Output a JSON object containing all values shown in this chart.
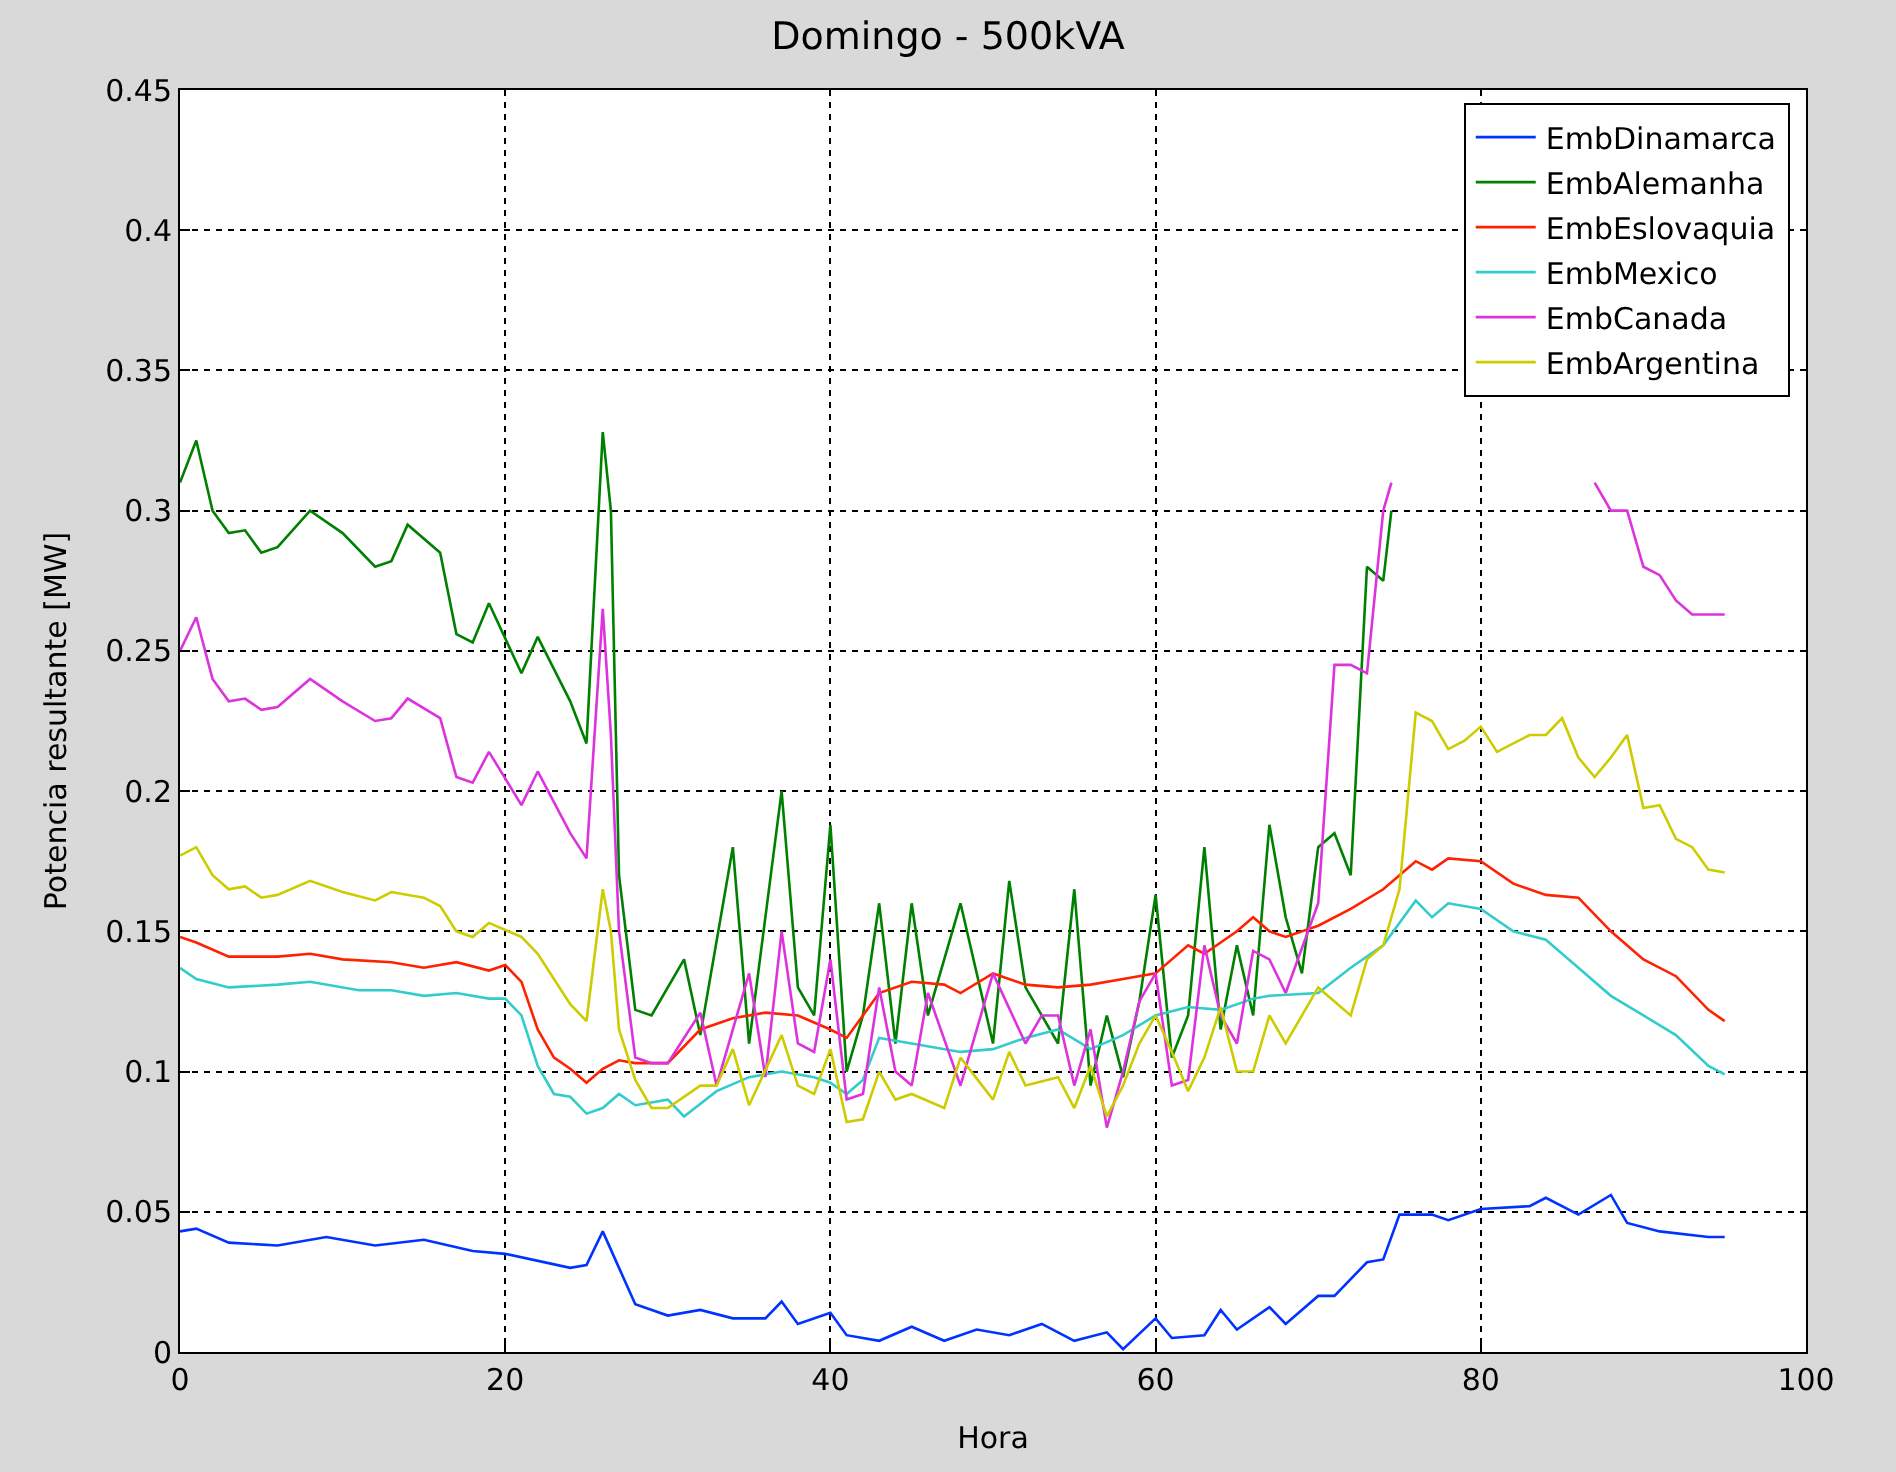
{
  "chart_data": {
    "type": "line",
    "title": "Domingo - 500kVA",
    "xlabel": "Hora",
    "ylabel": "Potencia resultante [MW]",
    "xlim": [
      0,
      100
    ],
    "xticks": [
      0,
      20,
      40,
      60,
      80,
      100
    ],
    "ylim": [
      0,
      0.45
    ],
    "yticks": [
      0,
      0.05,
      0.1,
      0.15,
      0.2,
      0.25,
      0.3,
      0.35,
      0.4,
      0.45
    ],
    "grid": true,
    "legend": "top right",
    "marker": "none",
    "line_style": "solid",
    "series": [
      {
        "name": "EmbDinamarca",
        "color": "#0033ff",
        "x": [
          0,
          1,
          3,
          6,
          9,
          12,
          15,
          18,
          20,
          24,
          25,
          26,
          27,
          28,
          30,
          32,
          34,
          36,
          37,
          38,
          40,
          41,
          43,
          45,
          47,
          49,
          51,
          53,
          55,
          57,
          58,
          60,
          61,
          63,
          64,
          65,
          67,
          68,
          70,
          71,
          73,
          74,
          75,
          77,
          78,
          80,
          83,
          84,
          86,
          88,
          89,
          91,
          94,
          95
        ],
        "values": [
          0.043,
          0.044,
          0.039,
          0.038,
          0.041,
          0.038,
          0.04,
          0.036,
          0.035,
          0.03,
          0.031,
          0.043,
          0.03,
          0.017,
          0.013,
          0.015,
          0.012,
          0.012,
          0.018,
          0.01,
          0.014,
          0.006,
          0.004,
          0.009,
          0.004,
          0.008,
          0.006,
          0.01,
          0.004,
          0.007,
          0.001,
          0.012,
          0.005,
          0.006,
          0.015,
          0.008,
          0.016,
          0.01,
          0.02,
          0.02,
          0.032,
          0.033,
          0.049,
          0.049,
          0.047,
          0.051,
          0.052,
          0.055,
          0.049,
          0.056,
          0.046,
          0.043,
          0.041,
          0.041
        ]
      },
      {
        "name": "EmbAlemanha",
        "color": "#008000",
        "x": [
          0,
          1,
          2,
          3,
          4,
          5,
          6,
          8,
          10,
          12,
          13,
          14,
          16,
          17,
          18,
          19,
          21,
          22,
          24,
          25,
          26,
          26.5,
          27,
          28,
          29,
          31,
          32,
          34,
          35,
          37,
          38,
          39,
          40,
          41,
          42,
          43,
          44,
          45,
          46,
          48,
          50,
          51,
          52,
          54,
          55,
          56,
          57,
          58,
          59,
          60,
          61,
          62,
          63,
          64,
          65,
          66,
          67,
          68,
          69,
          70,
          71,
          72,
          73,
          74,
          74.5
        ],
        "values": [
          0.31,
          0.325,
          0.3,
          0.292,
          0.293,
          0.285,
          0.287,
          0.3,
          0.292,
          0.28,
          0.282,
          0.295,
          0.285,
          0.256,
          0.253,
          0.267,
          0.242,
          0.255,
          0.232,
          0.217,
          0.328,
          0.3,
          0.17,
          0.122,
          0.12,
          0.14,
          0.113,
          0.18,
          0.11,
          0.2,
          0.13,
          0.12,
          0.188,
          0.1,
          0.12,
          0.16,
          0.11,
          0.16,
          0.12,
          0.16,
          0.11,
          0.168,
          0.13,
          0.11,
          0.165,
          0.095,
          0.12,
          0.098,
          0.125,
          0.163,
          0.105,
          0.12,
          0.18,
          0.115,
          0.145,
          0.12,
          0.188,
          0.155,
          0.135,
          0.18,
          0.185,
          0.17,
          0.28,
          0.275,
          0.3
        ]
      },
      {
        "name": "EmbEslovaquia",
        "color": "#ff2200",
        "x": [
          0,
          1,
          3,
          6,
          8,
          10,
          13,
          15,
          17,
          19,
          20,
          21,
          22,
          23,
          24,
          25,
          26,
          27,
          28,
          30,
          32,
          34,
          36,
          38,
          40,
          41,
          43,
          45,
          47,
          48,
          50,
          52,
          54,
          56,
          58,
          60,
          62,
          63,
          65,
          66,
          67,
          68,
          70,
          72,
          74,
          76,
          77,
          78,
          80,
          82,
          84,
          86,
          88,
          90,
          92,
          94,
          95
        ],
        "values": [
          0.148,
          0.146,
          0.141,
          0.141,
          0.142,
          0.14,
          0.139,
          0.137,
          0.139,
          0.136,
          0.138,
          0.132,
          0.115,
          0.105,
          0.101,
          0.096,
          0.101,
          0.104,
          0.103,
          0.103,
          0.115,
          0.119,
          0.121,
          0.12,
          0.115,
          0.112,
          0.128,
          0.132,
          0.131,
          0.128,
          0.135,
          0.131,
          0.13,
          0.131,
          0.133,
          0.135,
          0.145,
          0.142,
          0.15,
          0.155,
          0.15,
          0.148,
          0.152,
          0.158,
          0.165,
          0.175,
          0.172,
          0.176,
          0.175,
          0.167,
          0.163,
          0.162,
          0.15,
          0.14,
          0.134,
          0.122,
          0.118
        ]
      },
      {
        "name": "EmbMexico",
        "color": "#33cccc",
        "x": [
          0,
          1,
          3,
          6,
          8,
          11,
          13,
          15,
          17,
          19,
          20,
          21,
          22,
          23,
          24,
          25,
          26,
          27,
          28,
          30,
          31,
          33,
          35,
          37,
          39,
          40,
          41,
          42,
          43,
          45,
          48,
          50,
          52,
          54,
          56,
          58,
          60,
          62,
          64,
          66,
          67,
          70,
          72,
          74,
          76,
          77,
          78,
          80,
          82,
          84,
          86,
          88,
          90,
          92,
          94,
          95
        ],
        "values": [
          0.137,
          0.133,
          0.13,
          0.131,
          0.132,
          0.129,
          0.129,
          0.127,
          0.128,
          0.126,
          0.126,
          0.12,
          0.102,
          0.092,
          0.091,
          0.085,
          0.087,
          0.092,
          0.088,
          0.09,
          0.084,
          0.093,
          0.098,
          0.1,
          0.098,
          0.096,
          0.092,
          0.097,
          0.112,
          0.11,
          0.107,
          0.108,
          0.112,
          0.115,
          0.108,
          0.113,
          0.12,
          0.123,
          0.122,
          0.126,
          0.127,
          0.128,
          0.137,
          0.145,
          0.161,
          0.155,
          0.16,
          0.158,
          0.15,
          0.147,
          0.137,
          0.127,
          0.12,
          0.113,
          0.102,
          0.099
        ]
      },
      {
        "name": "EmbCanada",
        "color": "#dd33dd",
        "x": [
          0,
          1,
          2,
          3,
          4,
          5,
          6,
          8,
          10,
          12,
          13,
          14,
          16,
          17,
          18,
          19,
          21,
          22,
          24,
          25,
          26,
          26.5,
          27,
          28,
          29,
          30,
          32,
          33,
          35,
          36,
          37,
          38,
          39,
          40,
          41,
          42,
          43,
          44,
          45,
          46,
          48,
          50,
          52,
          53,
          54,
          55,
          56,
          57,
          58,
          59,
          60,
          61,
          62,
          63,
          64,
          65,
          66,
          67,
          68,
          70,
          71,
          72,
          73,
          74,
          74.5,
          80,
          87,
          88,
          89,
          90,
          91,
          92,
          93,
          95
        ],
        "values": [
          0.25,
          0.262,
          0.24,
          0.232,
          0.233,
          0.229,
          0.23,
          0.24,
          0.232,
          0.225,
          0.226,
          0.233,
          0.226,
          0.205,
          0.203,
          0.214,
          0.195,
          0.207,
          0.185,
          0.176,
          0.265,
          0.22,
          0.15,
          0.105,
          0.103,
          0.103,
          0.121,
          0.095,
          0.135,
          0.098,
          0.15,
          0.11,
          0.107,
          0.14,
          0.09,
          0.092,
          0.13,
          0.1,
          0.095,
          0.128,
          0.095,
          0.135,
          0.11,
          0.12,
          0.12,
          0.095,
          0.115,
          0.08,
          0.1,
          0.125,
          0.135,
          0.095,
          0.097,
          0.145,
          0.12,
          0.11,
          0.143,
          0.14,
          0.128,
          0.16,
          0.245,
          0.245,
          0.242,
          0.3,
          0.31,
          null,
          0.31,
          0.3,
          0.3,
          0.28,
          0.277,
          0.268,
          0.263,
          0.263
        ]
      },
      {
        "name": "EmbArgentina",
        "color": "#cccc00",
        "x": [
          0,
          1,
          2,
          3,
          4,
          5,
          6,
          8,
          10,
          12,
          13,
          15,
          16,
          17,
          18,
          19,
          21,
          22,
          24,
          25,
          26,
          26.5,
          27,
          28,
          29,
          30,
          32,
          33,
          34,
          35,
          37,
          38,
          39,
          40,
          41,
          42,
          43,
          44,
          45,
          47,
          48,
          50,
          51,
          52,
          54,
          55,
          56,
          57,
          58,
          59,
          60,
          61,
          62,
          63,
          64,
          65,
          66,
          67,
          68,
          70,
          72,
          73,
          74,
          75,
          76,
          77,
          78,
          79,
          80,
          81,
          83,
          84,
          85,
          86,
          87,
          88,
          89,
          90,
          91,
          92,
          93,
          94,
          95
        ],
        "values": [
          0.177,
          0.18,
          0.17,
          0.165,
          0.166,
          0.162,
          0.163,
          0.168,
          0.164,
          0.161,
          0.164,
          0.162,
          0.159,
          0.15,
          0.148,
          0.153,
          0.148,
          0.142,
          0.124,
          0.118,
          0.165,
          0.15,
          0.115,
          0.097,
          0.087,
          0.087,
          0.095,
          0.095,
          0.108,
          0.088,
          0.113,
          0.095,
          0.092,
          0.108,
          0.082,
          0.083,
          0.1,
          0.09,
          0.092,
          0.087,
          0.105,
          0.09,
          0.107,
          0.095,
          0.098,
          0.087,
          0.102,
          0.084,
          0.095,
          0.11,
          0.12,
          0.107,
          0.093,
          0.105,
          0.123,
          0.1,
          0.1,
          0.12,
          0.11,
          0.13,
          0.12,
          0.14,
          0.145,
          0.165,
          0.228,
          0.225,
          0.215,
          0.218,
          0.223,
          0.214,
          0.22,
          0.22,
          0.226,
          0.212,
          0.205,
          0.212,
          0.22,
          0.194,
          0.195,
          0.183,
          0.18,
          0.172,
          0.171
        ]
      }
    ]
  }
}
